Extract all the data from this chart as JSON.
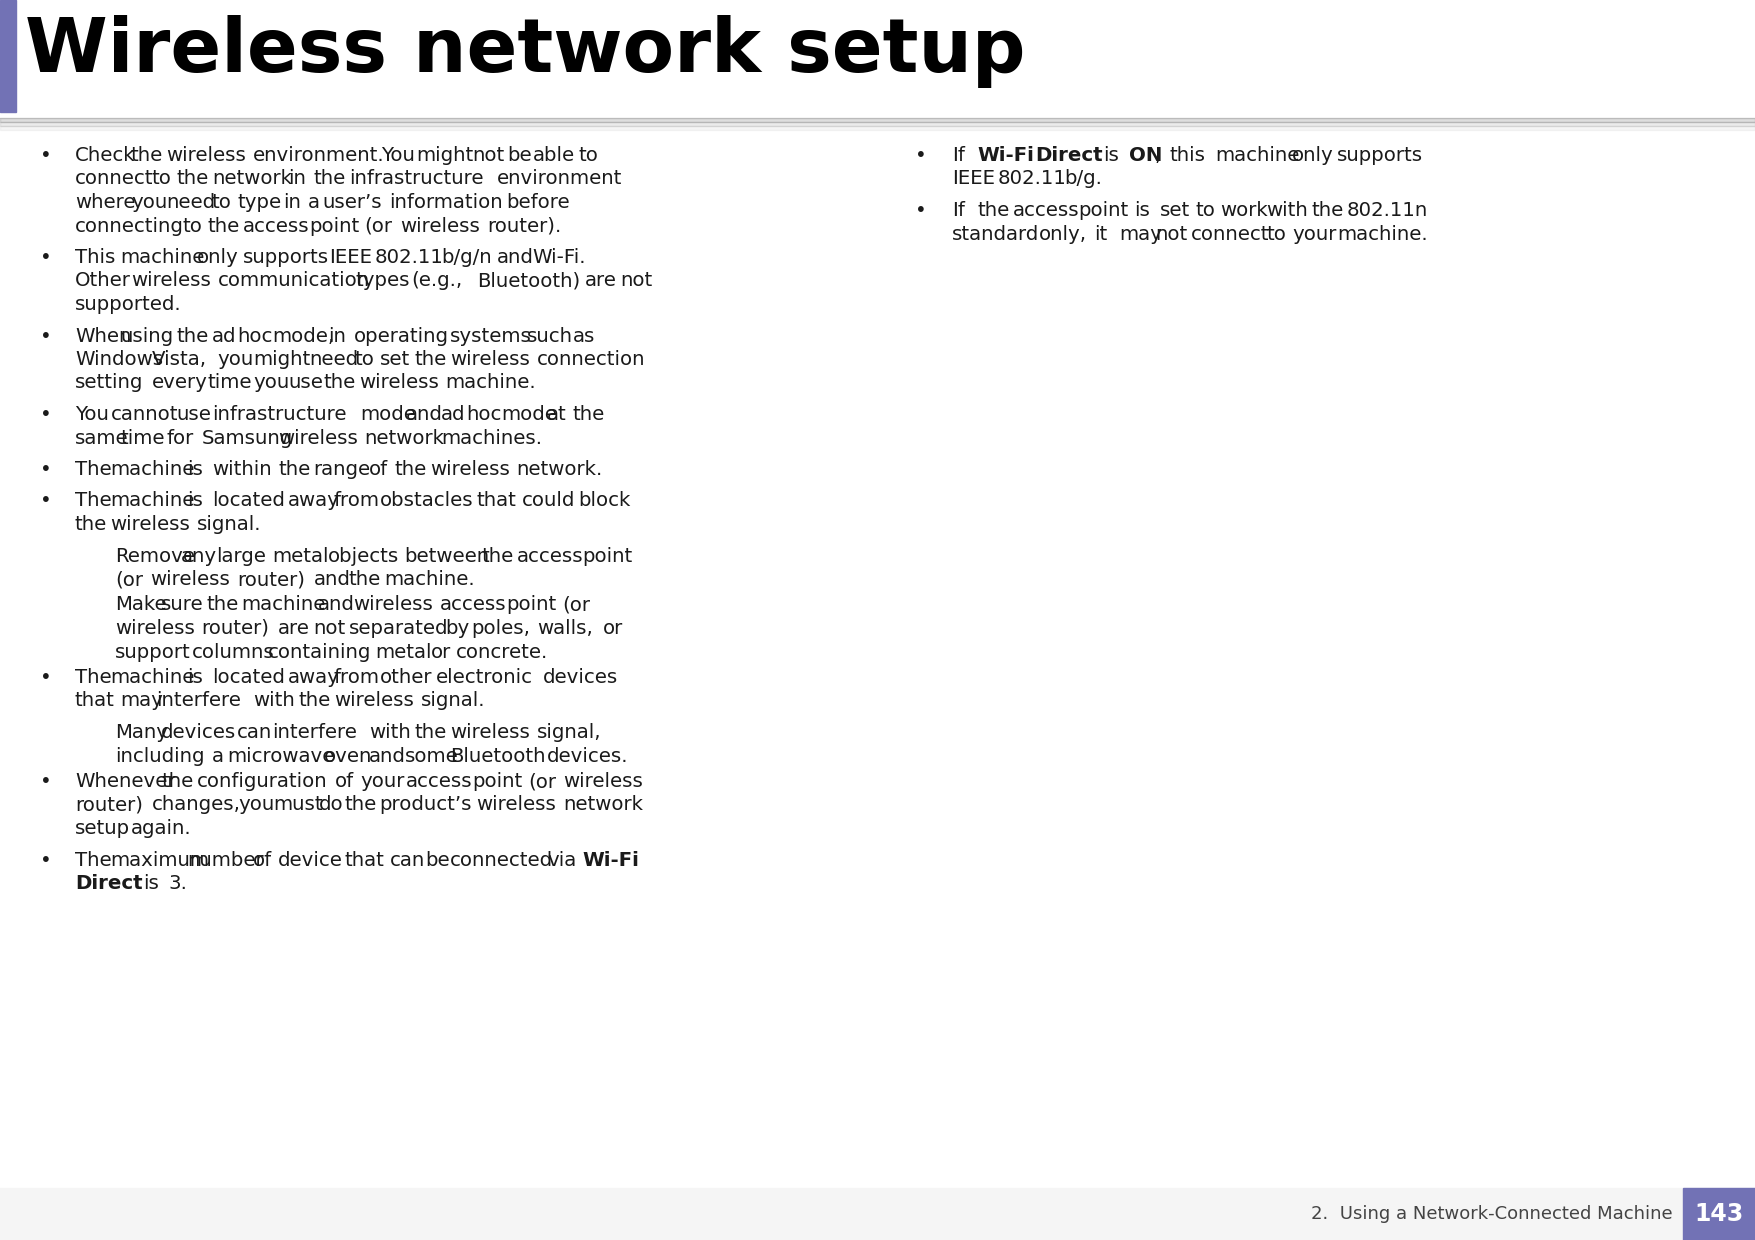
{
  "title": "Wireless network setup",
  "subtitle": "2.  Using a Network-Connected Machine",
  "page_number": "143",
  "accent_color": "#7272B5",
  "background_color": "#FFFFFF",
  "title_color": "#000000",
  "body_color": "#1a1a1a",
  "footer_bg": "#7272B5",
  "left_col_bullets": [
    {
      "bullet": true,
      "indent": false,
      "text_parts": [
        {
          "text": "Check the wireless environment. You might not be able to connect to the network in the infrastructure environment where you need to type in a user’s information before connecting to the access point (or wireless router).",
          "bold": false
        }
      ]
    },
    {
      "bullet": true,
      "indent": false,
      "text_parts": [
        {
          "text": "This machine only supports IEEE 802.11 b/g/n and Wi-Fi. Other wireless communication types (e.g., Bluetooth) are not supported.",
          "bold": false
        }
      ]
    },
    {
      "bullet": true,
      "indent": false,
      "text_parts": [
        {
          "text": "When using the ad hoc mode, in operating systems such as Windows Vista, you might need to set the wireless connection setting every time you use the wireless machine.",
          "bold": false
        }
      ]
    },
    {
      "bullet": true,
      "indent": false,
      "text_parts": [
        {
          "text": "You cannot use infrastructure mode and ad hoc mode at the same time for Samsung wireless network machines.",
          "bold": false
        }
      ]
    },
    {
      "bullet": true,
      "indent": false,
      "text_parts": [
        {
          "text": "The machine is within the range of the wireless network.",
          "bold": false
        }
      ]
    },
    {
      "bullet": true,
      "indent": false,
      "text_parts": [
        {
          "text": "The machine is located away from obstacles that could block the wireless signal.",
          "bold": false
        }
      ]
    },
    {
      "bullet": false,
      "indent": true,
      "text_parts": [
        {
          "text": "Remove any large metal objects between the access point (or wireless router) and the machine.",
          "bold": false
        }
      ]
    },
    {
      "bullet": false,
      "indent": true,
      "text_parts": [
        {
          "text": "Make sure the machine and wireless access point (or wireless router) are not separated by poles, walls, or support columns containing metal or concrete.",
          "bold": false
        }
      ]
    },
    {
      "bullet": true,
      "indent": false,
      "text_parts": [
        {
          "text": "The machine is located away from other electronic devices that may interfere with the wireless signal.",
          "bold": false
        }
      ]
    },
    {
      "bullet": false,
      "indent": true,
      "text_parts": [
        {
          "text": "Many devices can interfere with the wireless signal, including a microwave oven and some Bluetooth devices.",
          "bold": false
        }
      ]
    },
    {
      "bullet": true,
      "indent": false,
      "text_parts": [
        {
          "text": "Whenever the configuration of your access point (or wireless router) changes, you must do the product’s wireless network setup again.",
          "bold": false
        }
      ]
    },
    {
      "bullet": true,
      "indent": false,
      "text_parts": [
        {
          "text": "The maximum number of device that can be connected via ",
          "bold": false
        },
        {
          "text": "Wi-Fi Direct",
          "bold": true
        },
        {
          "text": " is 3.",
          "bold": false
        }
      ]
    }
  ],
  "right_col_bullets": [
    {
      "bullet": true,
      "text_parts": [
        {
          "text": "If ",
          "bold": false
        },
        {
          "text": "Wi-Fi Direct",
          "bold": true
        },
        {
          "text": " is ",
          "bold": false
        },
        {
          "text": "ON",
          "bold": true
        },
        {
          "text": ", this machine only supports IEEE 802.11 b/g.",
          "bold": false
        }
      ]
    },
    {
      "bullet": true,
      "text_parts": [
        {
          "text": "If the access point is set to work with the 802.11n standard only, it may not connect to your machine.",
          "bold": false
        }
      ]
    }
  ]
}
